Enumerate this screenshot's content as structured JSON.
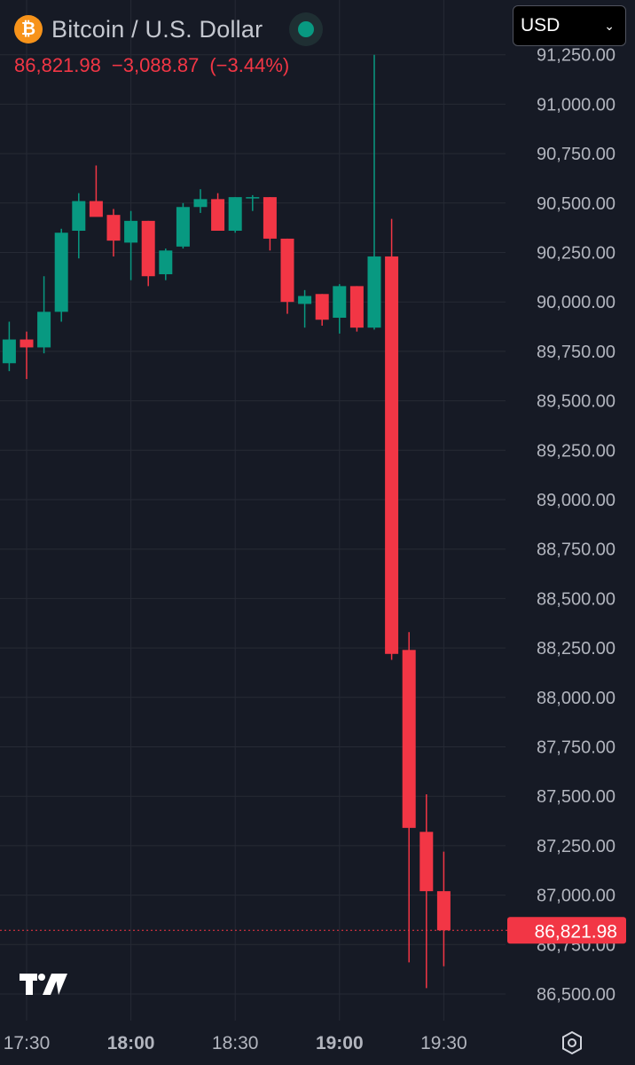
{
  "header": {
    "coin_symbol": "₿",
    "title": "Bitcoin / U.S. Dollar",
    "price": "86,821.98",
    "change": "−3,088.87",
    "change_pct": "(−3.44%)",
    "currency": "USD"
  },
  "colors": {
    "background": "#161a25",
    "grid": "#262a35",
    "up": "#089981",
    "down": "#f23645",
    "axis_text": "#b2b5be",
    "bitcoin": "#f7931a"
  },
  "icons": [
    "bitcoin-icon",
    "market-status-icon",
    "chevron-down-icon",
    "tradingview-logo",
    "settings-icon"
  ],
  "chart_data": {
    "type": "candlestick",
    "title": "Bitcoin / U.S. Dollar",
    "currency": "USD",
    "interval_minutes": 5,
    "x_tick_labels": [
      "17:30",
      "18:00",
      "18:30",
      "19:00",
      "19:30"
    ],
    "x_tick_times": [
      "17:30",
      "18:00",
      "18:30",
      "19:00",
      "19:30"
    ],
    "x_tick_bold": [
      false,
      true,
      false,
      true,
      false
    ],
    "y_tick_labels": [
      "86,500.00",
      "86,750.00",
      "87,000.00",
      "87,250.00",
      "87,500.00",
      "87,750.00",
      "88,000.00",
      "88,250.00",
      "88,500.00",
      "88,750.00",
      "89,000.00",
      "89,250.00",
      "89,500.00",
      "89,750.00",
      "90,000.00",
      "90,250.00",
      "90,500.00",
      "90,750.00",
      "91,000.00",
      "91,250.00"
    ],
    "y_tick_values": [
      86500,
      86750,
      87000,
      87250,
      87500,
      87750,
      88000,
      88250,
      88500,
      88750,
      89000,
      89250,
      89500,
      89750,
      90000,
      90250,
      90500,
      90750,
      91000,
      91250
    ],
    "ylim": [
      86500,
      91250
    ],
    "last_price": 86821.98,
    "last_price_label": "86,821.98",
    "grid": true,
    "candles": [
      {
        "t": "17:25",
        "o": 89690,
        "h": 89900,
        "l": 89650,
        "c": 89810
      },
      {
        "t": "17:30",
        "o": 89810,
        "h": 89850,
        "l": 89610,
        "c": 89770
      },
      {
        "t": "17:35",
        "o": 89770,
        "h": 90130,
        "l": 89740,
        "c": 89950
      },
      {
        "t": "17:40",
        "o": 89950,
        "h": 90370,
        "l": 89900,
        "c": 90350
      },
      {
        "t": "17:45",
        "o": 90360,
        "h": 90550,
        "l": 90220,
        "c": 90510
      },
      {
        "t": "17:50",
        "o": 90510,
        "h": 90690,
        "l": 90440,
        "c": 90430
      },
      {
        "t": "17:55",
        "o": 90440,
        "h": 90470,
        "l": 90230,
        "c": 90310
      },
      {
        "t": "18:00",
        "o": 90300,
        "h": 90460,
        "l": 90110,
        "c": 90410
      },
      {
        "t": "18:05",
        "o": 90410,
        "h": 90410,
        "l": 90080,
        "c": 90130
      },
      {
        "t": "18:10",
        "o": 90140,
        "h": 90270,
        "l": 90110,
        "c": 90260
      },
      {
        "t": "18:15",
        "o": 90280,
        "h": 90500,
        "l": 90270,
        "c": 90480
      },
      {
        "t": "18:20",
        "o": 90480,
        "h": 90570,
        "l": 90450,
        "c": 90520
      },
      {
        "t": "18:25",
        "o": 90520,
        "h": 90550,
        "l": 90360,
        "c": 90360
      },
      {
        "t": "18:30",
        "o": 90360,
        "h": 90530,
        "l": 90350,
        "c": 90530
      },
      {
        "t": "18:35",
        "o": 90530,
        "h": 90540,
        "l": 90460,
        "c": 90530
      },
      {
        "t": "18:40",
        "o": 90530,
        "h": 90530,
        "l": 90260,
        "c": 90320
      },
      {
        "t": "18:45",
        "o": 90320,
        "h": 90320,
        "l": 89940,
        "c": 90000
      },
      {
        "t": "18:50",
        "o": 89990,
        "h": 90060,
        "l": 89870,
        "c": 90030
      },
      {
        "t": "18:55",
        "o": 90040,
        "h": 90040,
        "l": 89880,
        "c": 89910
      },
      {
        "t": "19:00",
        "o": 89920,
        "h": 90090,
        "l": 89840,
        "c": 90080
      },
      {
        "t": "19:05",
        "o": 90080,
        "h": 90080,
        "l": 89850,
        "c": 89870
      },
      {
        "t": "19:10",
        "o": 89870,
        "h": 91250,
        "l": 89860,
        "c": 90230
      },
      {
        "t": "19:15",
        "o": 90230,
        "h": 90420,
        "l": 88190,
        "c": 88220
      },
      {
        "t": "19:20",
        "o": 88240,
        "h": 88330,
        "l": 86660,
        "c": 87340
      },
      {
        "t": "19:25",
        "o": 87320,
        "h": 87510,
        "l": 86530,
        "c": 87020
      },
      {
        "t": "19:30",
        "o": 87020,
        "h": 87220,
        "l": 86640,
        "c": 86822
      }
    ]
  }
}
